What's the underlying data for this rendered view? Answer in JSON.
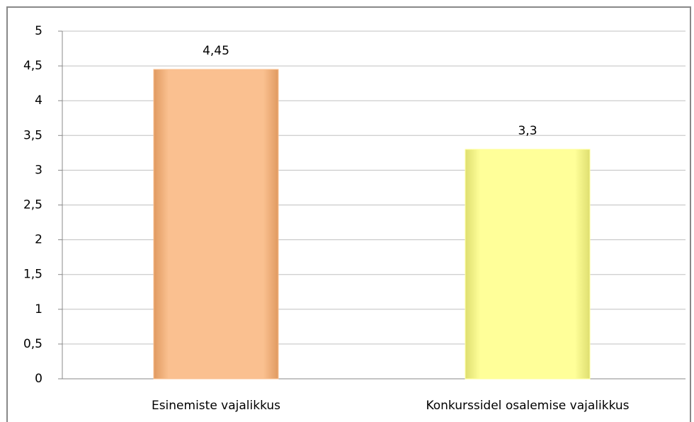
{
  "chart_data": {
    "type": "bar",
    "categories": [
      "Esinemiste vajalikkus",
      "Konkurssidel osalemise vajalikkus"
    ],
    "values": [
      4.45,
      3.3
    ],
    "value_labels": [
      "4,45",
      "3,3"
    ],
    "colors": [
      "#fac090",
      "#ffff99"
    ],
    "ylim": [
      0,
      5
    ],
    "yticks": [
      0,
      {
        "value": 0.5,
        "label": "0,5"
      },
      1,
      {
        "value": 1.5,
        "label": "1,5"
      },
      2,
      {
        "value": 2.5,
        "label": "2,5"
      },
      3,
      {
        "value": 3.5,
        "label": "3,5"
      },
      4,
      {
        "value": 4.5,
        "label": "4,5"
      },
      5
    ],
    "grid": true
  }
}
